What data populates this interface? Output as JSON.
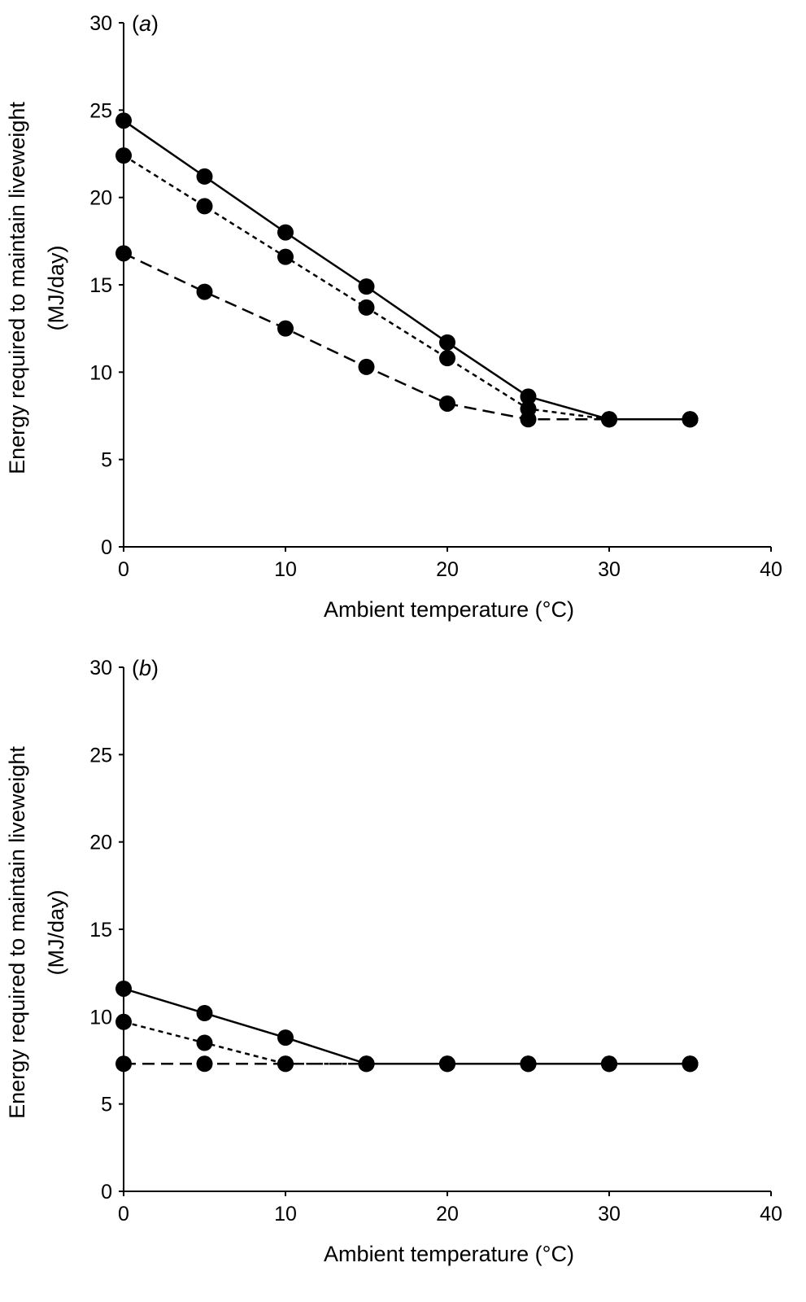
{
  "chart_data": [
    {
      "type": "line",
      "panel_label": "a",
      "xlabel": "Ambient temperature (°C)",
      "ylabel_lines": [
        "Energy required to maintain liveweight",
        "(MJ/day)"
      ],
      "xlim": [
        0,
        40
      ],
      "ylim": [
        0,
        30
      ],
      "xticks": [
        0,
        10,
        20,
        30,
        40
      ],
      "yticks": [
        0,
        5,
        10,
        15,
        20,
        25,
        30
      ],
      "grid": false,
      "x": [
        0,
        5,
        10,
        15,
        20,
        25,
        30,
        35
      ],
      "series": [
        {
          "line_style": "solid",
          "values": [
            24.4,
            21.2,
            18.0,
            14.9,
            11.7,
            8.6,
            7.3,
            7.3
          ]
        },
        {
          "line_style": "dotted",
          "values": [
            22.4,
            19.5,
            16.6,
            13.7,
            10.8,
            7.9,
            7.3,
            7.3
          ]
        },
        {
          "line_style": "dashed",
          "values": [
            16.8,
            14.6,
            12.5,
            10.3,
            8.2,
            7.3,
            7.3,
            7.3
          ]
        }
      ]
    },
    {
      "type": "line",
      "panel_label": "b",
      "xlabel": "Ambient temperature (°C)",
      "ylabel_lines": [
        "Energy required to maintain liveweight",
        "(MJ/day)"
      ],
      "xlim": [
        0,
        40
      ],
      "ylim": [
        0,
        30
      ],
      "xticks": [
        0,
        10,
        20,
        30,
        40
      ],
      "yticks": [
        0,
        5,
        10,
        15,
        20,
        25,
        30
      ],
      "grid": false,
      "x": [
        0,
        5,
        10,
        15,
        20,
        25,
        30,
        35
      ],
      "series": [
        {
          "line_style": "solid",
          "values": [
            11.6,
            10.2,
            8.8,
            7.3,
            7.3,
            7.3,
            7.3,
            7.3
          ]
        },
        {
          "line_style": "dotted",
          "values": [
            9.7,
            8.5,
            7.3,
            7.3,
            7.3,
            7.3,
            7.3,
            7.3
          ]
        },
        {
          "line_style": "dashed",
          "values": [
            7.3,
            7.3,
            7.3,
            7.3,
            7.3,
            7.3,
            7.3,
            7.3
          ]
        }
      ]
    }
  ]
}
